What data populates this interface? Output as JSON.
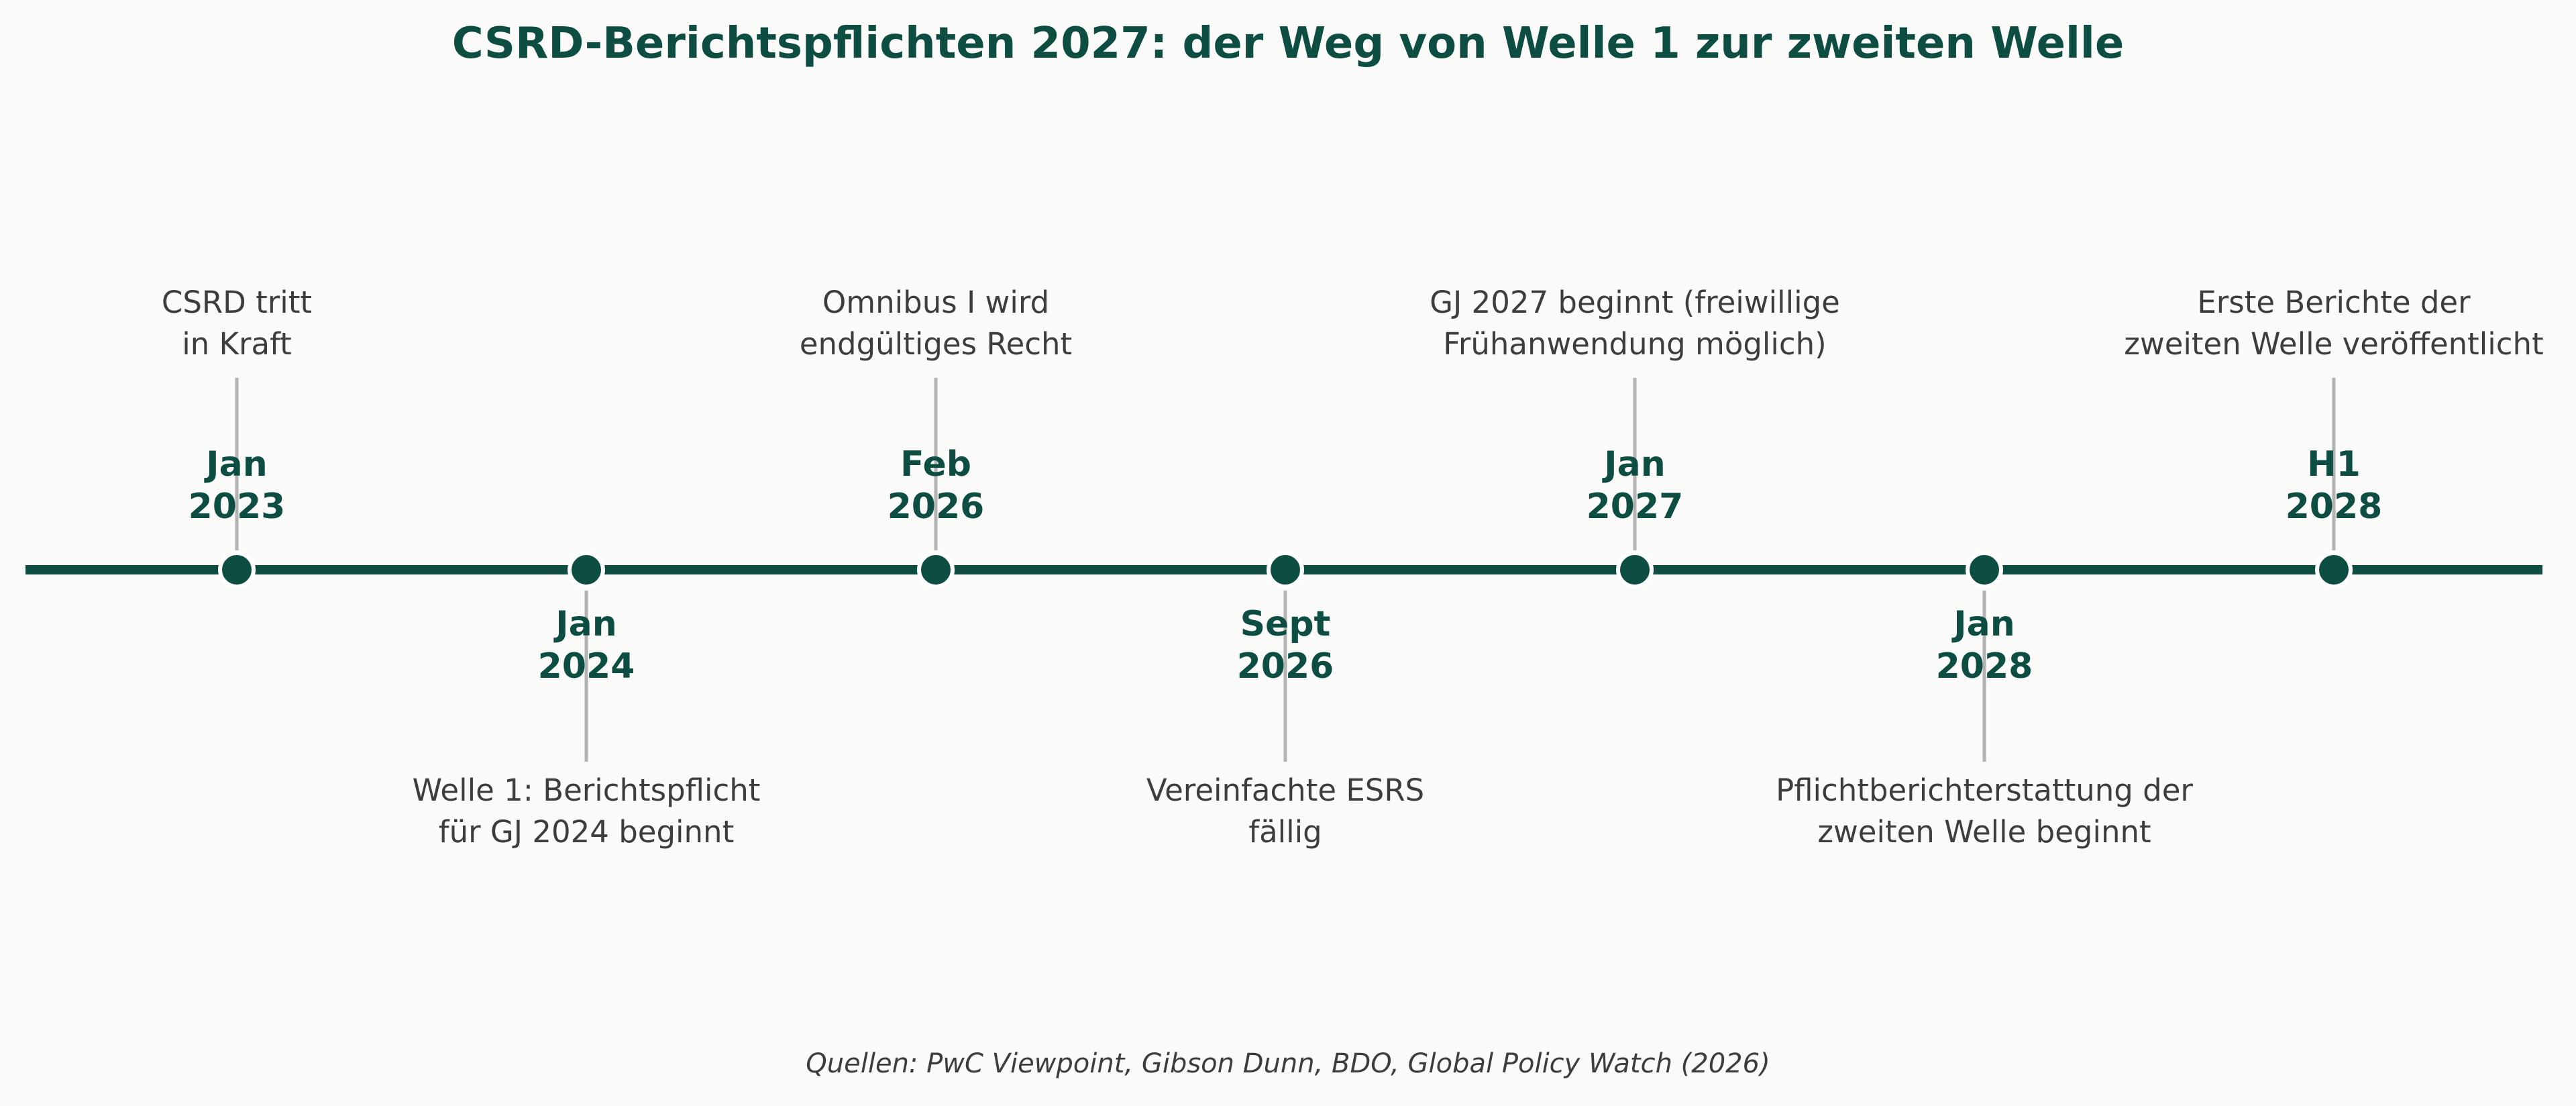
{
  "title": "CSRD-Berichtspflichten 2027: der Weg von Welle 1 zur zweiten Welle",
  "footer": "Quellen: PwC Viewpoint, Gibson Dunn, BDO, Global Policy Watch (2026)",
  "colors": {
    "accent": "#0e4d42",
    "connector": "#b3b3b3",
    "text": "#3d3d3d",
    "background": "#fafaf9"
  },
  "events": [
    {
      "date": [
        "Jan",
        "2023"
      ],
      "description": [
        "CSRD tritt",
        "in Kraft"
      ],
      "side": "above"
    },
    {
      "date": [
        "Jan",
        "2024"
      ],
      "description": [
        "Welle 1: Berichtspflicht",
        "für GJ 2024 beginnt"
      ],
      "side": "below"
    },
    {
      "date": [
        "Feb",
        "2026"
      ],
      "description": [
        "Omnibus I wird",
        "endgültiges Recht"
      ],
      "side": "above"
    },
    {
      "date": [
        "Sept",
        "2026"
      ],
      "description": [
        "Vereinfachte ESRS",
        "fällig"
      ],
      "side": "below"
    },
    {
      "date": [
        "Jan",
        "2027"
      ],
      "description": [
        "GJ 2027 beginnt (freiwillige",
        "Frühanwendung möglich)"
      ],
      "side": "above"
    },
    {
      "date": [
        "Jan",
        "2028"
      ],
      "description": [
        "Pflichtberichterstattung der",
        "zweiten Welle beginnt"
      ],
      "side": "below"
    },
    {
      "date": [
        "H1",
        "2028"
      ],
      "description": [
        "Erste Berichte der",
        "zweiten Welle veröffentlicht"
      ],
      "side": "above"
    }
  ]
}
